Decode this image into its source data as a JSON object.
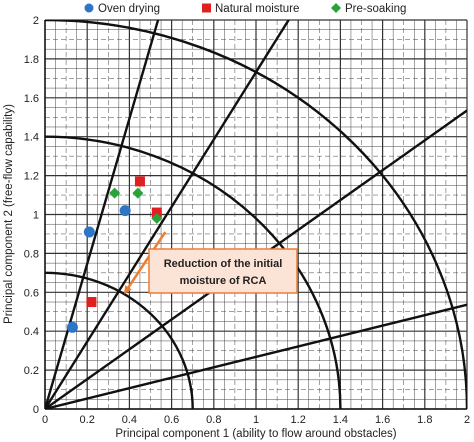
{
  "chart_data": {
    "type": "scatter",
    "xlabel": "Principal component 1 (ability to flow around obstacles)",
    "ylabel": "Principal component 2 (free-flow capability)",
    "xlim": [
      0,
      2
    ],
    "ylim": [
      0,
      2
    ],
    "x_ticks": [
      "0",
      "0.2",
      "0.4",
      "0.6",
      "0.8",
      "1",
      "1.2",
      "1.4",
      "1.6",
      "1.8",
      "2"
    ],
    "y_ticks": [
      "0",
      "0.2",
      "0.4",
      "0.6",
      "0.8",
      "1",
      "1.2",
      "1.4",
      "1.6",
      "1.8",
      "2"
    ],
    "grid": true,
    "legend_position": "top",
    "series": [
      {
        "name": "Oven drying",
        "marker": "circle",
        "color": "#2E75C6",
        "points": [
          [
            0.13,
            0.42
          ],
          [
            0.21,
            0.91
          ],
          [
            0.38,
            1.02
          ]
        ]
      },
      {
        "name": "Natural moisture",
        "marker": "square",
        "color": "#E02020",
        "points": [
          [
            0.22,
            0.55
          ],
          [
            0.45,
            1.17
          ],
          [
            0.53,
            1.01
          ]
        ]
      },
      {
        "name": "Pre-soaking",
        "marker": "diamond",
        "color": "#27A33A",
        "points": [
          [
            0.33,
            1.11
          ],
          [
            0.44,
            1.11
          ],
          [
            0.53,
            0.98
          ]
        ]
      }
    ],
    "overlay": {
      "arcs": [
        0.7,
        1.4,
        2.0
      ],
      "ray_angles_deg": [
        15,
        37.5,
        60,
        75
      ]
    },
    "annotation": {
      "text_line1": "Reduction of the initial",
      "text_line2": "moisture of RCA",
      "arrow_from": [
        0.57,
        0.91
      ],
      "arrow_to": [
        0.38,
        0.6
      ],
      "box_fill": "#FBE4D5",
      "box_stroke": "#ED7D31"
    }
  }
}
